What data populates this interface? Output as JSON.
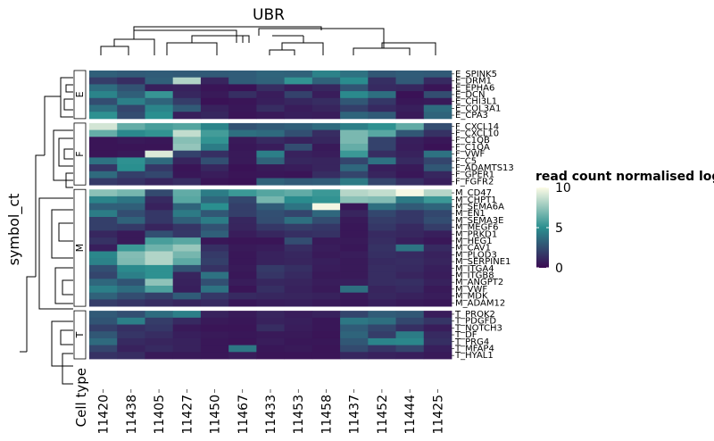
{
  "chart_data": {
    "type": "heatmap",
    "title": "UBR",
    "ylabel": "symbol_ct",
    "column_annotation_label": "Cell type",
    "legend": {
      "title": "read count normalised log",
      "ticks": [
        0,
        5,
        10
      ],
      "range": [
        0,
        10
      ],
      "colors": [
        "#3b0a52",
        "#2a8f8f",
        "#fdfbe6"
      ],
      "placement": "right"
    },
    "columns": [
      "11420",
      "11438",
      "11405",
      "11427",
      "11450",
      "11467",
      "11433",
      "11453",
      "11458",
      "11437",
      "11452",
      "11444",
      "11425"
    ],
    "groups": [
      {
        "name": "E",
        "rows": [
          {
            "label": "E_SPINK5",
            "values": [
              3.2,
              3.0,
              3.1,
              3.0,
              3.0,
              3.1,
              3.4,
              3.3,
              4.5,
              3.9,
              2.9,
              3.1,
              3.0
            ]
          },
          {
            "label": "E_DRM1",
            "values": [
              1.9,
              1.3,
              3.2,
              8.2,
              1.0,
              3.1,
              3.3,
              5.2,
              3.3,
              4.9,
              1.4,
              3.0,
              1.2
            ]
          },
          {
            "label": "E_EPHA6",
            "values": [
              3.7,
              2.7,
              0.8,
              0.9,
              0.4,
              0.3,
              1.3,
              0.7,
              1.1,
              2.8,
              1.2,
              1.1,
              0.4
            ]
          },
          {
            "label": "E_DCN",
            "values": [
              4.6,
              3.2,
              5.3,
              1.1,
              0.6,
              1.4,
              0.7,
              2.1,
              0.7,
              4.8,
              3.8,
              0.3,
              2.5
            ]
          },
          {
            "label": "E_CHI3L1",
            "values": [
              2.5,
              4.4,
              3.4,
              1.9,
              0.3,
              0.4,
              0.8,
              1.1,
              1.3,
              2.9,
              1.7,
              0.5,
              0.6
            ]
          },
          {
            "label": "E_COL3A1",
            "values": [
              3.8,
              2.2,
              4.6,
              3.0,
              0.9,
              0.5,
              1.3,
              0.7,
              1.0,
              2.0,
              1.2,
              0.8,
              3.7
            ]
          },
          {
            "label": "E_CPA3",
            "values": [
              5.1,
              2.5,
              5.0,
              0.8,
              1.1,
              0.4,
              0.6,
              0.8,
              0.7,
              3.4,
              3.0,
              0.6,
              3.4
            ]
          }
        ]
      },
      {
        "name": "F",
        "rows": [
          {
            "label": "F_CXCL14",
            "values": [
              9.0,
              6.4,
              5.7,
              6.0,
              4.6,
              2.7,
              3.0,
              3.2,
              3.6,
              4.4,
              5.1,
              6.3,
              2.5
            ]
          },
          {
            "label": "F_CXCL10",
            "values": [
              6.4,
              4.8,
              5.2,
              8.6,
              5.6,
              3.8,
              3.6,
              2.6,
              1.3,
              6.9,
              6.1,
              2.9,
              1.5
            ]
          },
          {
            "label": "F_C1QB",
            "values": [
              0.4,
              0.6,
              0.5,
              7.2,
              5.2,
              0.6,
              1.2,
              0.9,
              1.1,
              6.9,
              2.1,
              0.8,
              0.5
            ]
          },
          {
            "label": "F_C1QA",
            "values": [
              0.4,
              0.4,
              0.4,
              7.5,
              4.3,
              0.5,
              0.7,
              2.5,
              0.6,
              6.4,
              2.1,
              0.7,
              0.3
            ]
          },
          {
            "label": "F_VWF",
            "values": [
              0.4,
              0.6,
              9.2,
              2.1,
              1.4,
              0.6,
              4.4,
              0.9,
              0.7,
              5.4,
              1.3,
              0.9,
              3.9
            ]
          },
          {
            "label": "F_C5",
            "values": [
              3.9,
              5.1,
              3.6,
              1.0,
              2.6,
              0.6,
              3.3,
              1.1,
              1.0,
              2.2,
              3.9,
              1.2,
              2.2
            ]
          },
          {
            "label": "F_ADAMTS13",
            "values": [
              1.6,
              5.0,
              1.7,
              0.4,
              1.1,
              0.3,
              0.6,
              0.7,
              1.0,
              3.5,
              0.8,
              0.6,
              2.9
            ]
          },
          {
            "label": "F_GPER1",
            "values": [
              3.6,
              2.0,
              2.3,
              0.5,
              0.7,
              0.4,
              0.5,
              0.4,
              1.3,
              2.2,
              1.0,
              0.5,
              1.1
            ]
          },
          {
            "label": "F_FGFR2",
            "values": [
              1.8,
              1.5,
              1.0,
              1.3,
              0.4,
              0.3,
              3.3,
              3.0,
              3.1,
              4.2,
              2.2,
              1.4,
              0.8
            ]
          }
        ]
      },
      {
        "name": "M",
        "rows": [
          {
            "label": "M_CD47",
            "values": [
              7.3,
              6.8,
              2.4,
              6.3,
              4.3,
              5.4,
              6.0,
              6.3,
              5.4,
              8.3,
              8.6,
              9.8,
              8.3
            ]
          },
          {
            "label": "M_CHPT1",
            "values": [
              4.6,
              4.0,
              1.2,
              6.1,
              3.5,
              2.3,
              6.8,
              4.9,
              5.2,
              7.3,
              7.1,
              4.2,
              5.4
            ]
          },
          {
            "label": "M_SEMA6A",
            "values": [
              3.2,
              3.2,
              0.9,
              3.4,
              5.0,
              2.0,
              3.1,
              4.0,
              9.8,
              0.5,
              3.8,
              3.0,
              3.4
            ]
          },
          {
            "label": "M_EN1",
            "values": [
              4.3,
              2.5,
              1.7,
              4.2,
              2.9,
              2.0,
              2.6,
              2.2,
              3.5,
              1.0,
              2.3,
              1.7,
              2.3
            ]
          },
          {
            "label": "M_SEMA3E",
            "values": [
              2.0,
              3.3,
              1.7,
              3.2,
              4.3,
              1.1,
              2.5,
              3.8,
              2.5,
              0.6,
              1.9,
              1.7,
              2.5
            ]
          },
          {
            "label": "M_MEGF6",
            "values": [
              2.0,
              1.8,
              1.0,
              1.6,
              2.7,
              1.0,
              1.7,
              1.9,
              1.7,
              0.5,
              1.7,
              1.2,
              1.9
            ]
          },
          {
            "label": "M_PRKD1",
            "values": [
              1.1,
              0.6,
              2.6,
              1.7,
              3.2,
              0.7,
              1.1,
              1.4,
              1.5,
              0.5,
              1.2,
              1.1,
              0.8
            ]
          },
          {
            "label": "M_HEG1",
            "values": [
              1.5,
              0.6,
              5.7,
              6.1,
              0.5,
              0.4,
              0.4,
              2.5,
              0.6,
              0.6,
              1.3,
              0.8,
              0.5
            ]
          },
          {
            "label": "M_CAV1",
            "values": [
              0.8,
              5.4,
              6.6,
              7.6,
              1.4,
              0.6,
              0.7,
              1.3,
              0.7,
              0.5,
              1.5,
              4.0,
              1.2
            ]
          },
          {
            "label": "M_PLOD3",
            "values": [
              4.7,
              7.1,
              8.2,
              6.8,
              1.8,
              0.5,
              0.9,
              1.1,
              0.6,
              0.7,
              1.4,
              1.2,
              0.9
            ]
          },
          {
            "label": "M_SERPINE1",
            "values": [
              4.5,
              7.0,
              8.2,
              6.2,
              2.0,
              0.5,
              0.9,
              1.0,
              0.8,
              0.6,
              1.2,
              1.3,
              1.0
            ]
          },
          {
            "label": "M_ITGA4",
            "values": [
              2.6,
              4.8,
              5.1,
              2.7,
              1.5,
              0.6,
              1.8,
              1.4,
              0.7,
              0.6,
              1.3,
              1.2,
              0.8
            ]
          },
          {
            "label": "M_ITGB8",
            "values": [
              2.2,
              4.4,
              5.1,
              1.0,
              3.9,
              0.5,
              1.6,
              1.2,
              0.6,
              0.6,
              1.3,
              1.0,
              0.7
            ]
          },
          {
            "label": "M_ANGPT2",
            "values": [
              3.5,
              2.8,
              7.4,
              0.9,
              2.6,
              0.7,
              1.1,
              1.0,
              0.7,
              0.8,
              1.3,
              1.4,
              0.9
            ]
          },
          {
            "label": "M_VWF",
            "values": [
              4.4,
              3.7,
              5.8,
              0.8,
              3.9,
              0.4,
              1.4,
              0.9,
              0.6,
              3.8,
              1.0,
              1.2,
              0.6
            ]
          },
          {
            "label": "M_MDK",
            "values": [
              3.3,
              2.5,
              2.0,
              3.1,
              1.7,
              1.2,
              1.1,
              1.0,
              0.9,
              0.6,
              1.1,
              0.9,
              0.7
            ]
          },
          {
            "label": "M_ADAM12",
            "values": [
              1.9,
              1.6,
              1.3,
              1.0,
              1.2,
              0.5,
              0.7,
              0.8,
              0.6,
              0.5,
              0.8,
              0.6,
              0.5
            ]
          }
        ]
      },
      {
        "name": "T",
        "rows": [
          {
            "label": "T_PROK2",
            "values": [
              3.0,
              2.6,
              3.7,
              4.4,
              0.9,
              0.6,
              1.0,
              0.7,
              0.9,
              2.2,
              3.1,
              2.9,
              0.7
            ]
          },
          {
            "label": "T_PDGFD",
            "values": [
              2.8,
              4.4,
              1.9,
              1.2,
              0.6,
              0.5,
              0.9,
              0.8,
              0.5,
              4.1,
              3.8,
              2.3,
              1.6
            ]
          },
          {
            "label": "T_NOTCH3",
            "values": [
              2.0,
              1.4,
              1.7,
              0.6,
              0.4,
              0.4,
              1.3,
              0.7,
              0.5,
              3.1,
              2.3,
              1.4,
              0.7
            ]
          },
          {
            "label": "T_DF",
            "values": [
              2.9,
              1.6,
              1.3,
              0.8,
              0.6,
              0.5,
              0.6,
              0.6,
              0.4,
              3.4,
              1.9,
              4.3,
              1.2
            ]
          },
          {
            "label": "T_PRG4",
            "values": [
              3.6,
              1.2,
              1.0,
              0.9,
              0.5,
              0.4,
              0.7,
              0.5,
              0.5,
              2.9,
              4.6,
              4.7,
              1.4
            ]
          },
          {
            "label": "T_MFAP4",
            "values": [
              2.2,
              0.9,
              1.2,
              0.9,
              0.5,
              4.1,
              0.5,
              0.6,
              0.4,
              2.4,
              1.6,
              2.2,
              0.8
            ]
          },
          {
            "label": "T_HYAL1",
            "values": [
              1.5,
              1.3,
              0.6,
              0.6,
              0.5,
              0.7,
              0.4,
              0.4,
              0.4,
              1.1,
              0.9,
              0.8,
              0.6
            ]
          }
        ]
      }
    ]
  }
}
